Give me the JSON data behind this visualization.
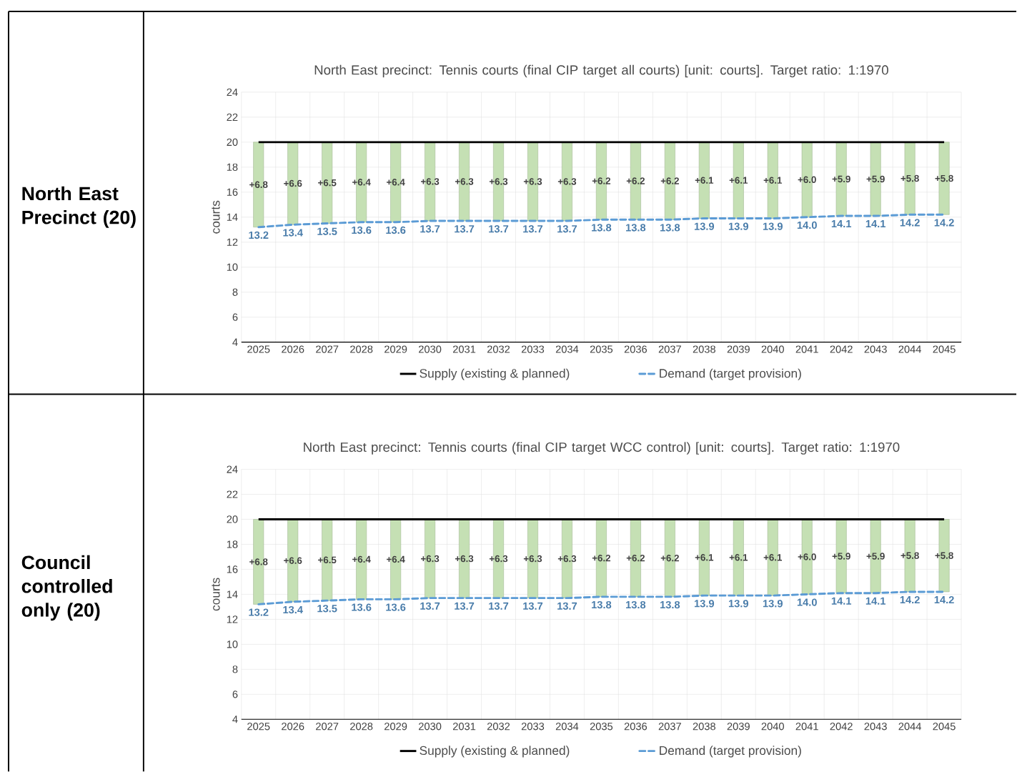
{
  "chart_data": [
    {
      "type": "line",
      "title": "North East precinct: Tennis courts (final CIP target all courts) [unit: courts].  Target ratio: 1:1970",
      "ylabel": "courts",
      "annotations": [
        "North East Precinct (20)"
      ],
      "categories": [
        "2025",
        "2026",
        "2027",
        "2028",
        "2029",
        "2030",
        "2031",
        "2032",
        "2033",
        "2034",
        "2035",
        "2036",
        "2037",
        "2038",
        "2039",
        "2040",
        "2041",
        "2042",
        "2043",
        "2044",
        "2045"
      ],
      "ylim": [
        4,
        24
      ],
      "yticks": [
        4,
        6,
        8,
        10,
        12,
        14,
        16,
        18,
        20,
        22,
        24
      ],
      "grid": true,
      "legend": "bottom",
      "marker": "none",
      "series": [
        {
          "type": "bar",
          "color": "#c5e0b4",
          "base": [
            13.2,
            13.4,
            13.5,
            13.6,
            13.6,
            13.7,
            13.7,
            13.7,
            13.7,
            13.7,
            13.8,
            13.8,
            13.8,
            13.9,
            13.9,
            13.9,
            14.0,
            14.1,
            14.1,
            14.2,
            14.2
          ],
          "values": [
            6.8,
            6.6,
            6.5,
            6.4,
            6.4,
            6.3,
            6.3,
            6.3,
            6.3,
            6.3,
            6.2,
            6.2,
            6.2,
            6.1,
            6.1,
            6.1,
            6.0,
            5.9,
            5.9,
            5.8,
            5.8
          ],
          "value_labels": [
            "+6.8",
            "+6.6",
            "+6.5",
            "+6.4",
            "+6.4",
            "+6.3",
            "+6.3",
            "+6.3",
            "+6.3",
            "+6.3",
            "+6.2",
            "+6.2",
            "+6.2",
            "+6.1",
            "+6.1",
            "+6.1",
            "+6.0",
            "+5.9",
            "+5.9",
            "+5.8",
            "+5.8"
          ]
        },
        {
          "name": "Supply (existing & planned)",
          "color": "#000000",
          "line_style": "solid",
          "values": [
            20,
            20,
            20,
            20,
            20,
            20,
            20,
            20,
            20,
            20,
            20,
            20,
            20,
            20,
            20,
            20,
            20,
            20,
            20,
            20,
            20
          ]
        },
        {
          "name": "Demand (target provision)",
          "color": "#5b9bd5",
          "line_style": "dashed",
          "values": [
            13.2,
            13.4,
            13.5,
            13.6,
            13.6,
            13.7,
            13.7,
            13.7,
            13.7,
            13.7,
            13.8,
            13.8,
            13.8,
            13.9,
            13.9,
            13.9,
            14.0,
            14.1,
            14.1,
            14.2,
            14.2
          ],
          "value_labels": [
            "13.2",
            "13.4",
            "13.5",
            "13.6",
            "13.6",
            "13.7",
            "13.7",
            "13.7",
            "13.7",
            "13.7",
            "13.8",
            "13.8",
            "13.8",
            "13.9",
            "13.9",
            "13.9",
            "14.0",
            "14.1",
            "14.1",
            "14.2",
            "14.2"
          ]
        }
      ]
    },
    {
      "type": "line",
      "title": "North East precinct: Tennis courts (final CIP target WCC control) [unit: courts].  Target ratio: 1:1970",
      "ylabel": "courts",
      "annotations": [
        "Council controlled only (20)"
      ],
      "categories": [
        "2025",
        "2026",
        "2027",
        "2028",
        "2029",
        "2030",
        "2031",
        "2032",
        "2033",
        "2034",
        "2035",
        "2036",
        "2037",
        "2038",
        "2039",
        "2040",
        "2041",
        "2042",
        "2043",
        "2044",
        "2045"
      ],
      "ylim": [
        4,
        24
      ],
      "yticks": [
        4,
        6,
        8,
        10,
        12,
        14,
        16,
        18,
        20,
        22,
        24
      ],
      "grid": true,
      "legend": "bottom",
      "marker": "none",
      "series": [
        {
          "type": "bar",
          "color": "#c5e0b4",
          "base": [
            13.2,
            13.4,
            13.5,
            13.6,
            13.6,
            13.7,
            13.7,
            13.7,
            13.7,
            13.7,
            13.8,
            13.8,
            13.8,
            13.9,
            13.9,
            13.9,
            14.0,
            14.1,
            14.1,
            14.2,
            14.2
          ],
          "values": [
            6.8,
            6.6,
            6.5,
            6.4,
            6.4,
            6.3,
            6.3,
            6.3,
            6.3,
            6.3,
            6.2,
            6.2,
            6.2,
            6.1,
            6.1,
            6.1,
            6.0,
            5.9,
            5.9,
            5.8,
            5.8
          ],
          "value_labels": [
            "+6.8",
            "+6.6",
            "+6.5",
            "+6.4",
            "+6.4",
            "+6.3",
            "+6.3",
            "+6.3",
            "+6.3",
            "+6.3",
            "+6.2",
            "+6.2",
            "+6.2",
            "+6.1",
            "+6.1",
            "+6.1",
            "+6.0",
            "+5.9",
            "+5.9",
            "+5.8",
            "+5.8"
          ]
        },
        {
          "name": "Supply (existing & planned)",
          "color": "#000000",
          "line_style": "solid",
          "values": [
            20,
            20,
            20,
            20,
            20,
            20,
            20,
            20,
            20,
            20,
            20,
            20,
            20,
            20,
            20,
            20,
            20,
            20,
            20,
            20,
            20
          ]
        },
        {
          "name": "Demand (target provision)",
          "color": "#5b9bd5",
          "line_style": "dashed",
          "values": [
            13.2,
            13.4,
            13.5,
            13.6,
            13.6,
            13.7,
            13.7,
            13.7,
            13.7,
            13.7,
            13.8,
            13.8,
            13.8,
            13.9,
            13.9,
            13.9,
            14.0,
            14.1,
            14.1,
            14.2,
            14.2
          ],
          "value_labels": [
            "13.2",
            "13.4",
            "13.5",
            "13.6",
            "13.6",
            "13.7",
            "13.7",
            "13.7",
            "13.7",
            "13.7",
            "13.8",
            "13.8",
            "13.8",
            "13.9",
            "13.9",
            "13.9",
            "14.0",
            "14.1",
            "14.1",
            "14.2",
            "14.2"
          ]
        }
      ]
    }
  ]
}
